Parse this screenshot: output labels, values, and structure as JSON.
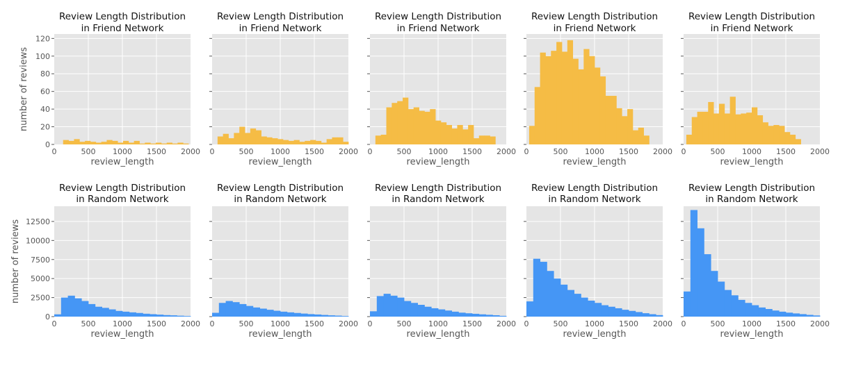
{
  "figure": {
    "rows": [
      {
        "title_line1": "Review Length Distribution",
        "title_line2": "in Friend Network",
        "ylabel": "number of reviews",
        "color": "#F5BC45"
      },
      {
        "title_line1": "Review Length Distribution",
        "title_line2": "in Random Network",
        "ylabel": "number of reviews",
        "color": "#4596F5"
      }
    ],
    "xlabel": "review_length",
    "background": "#E5E5E5",
    "grid_color": "#FFFFFF"
  },
  "chart_data": [
    {
      "type": "bar",
      "title": "Review Length Distribution in Friend Network",
      "xlabel": "review_length",
      "ylabel": "number of reviews",
      "xlim": [
        0,
        2000
      ],
      "ylim": [
        0,
        125
      ],
      "xticks": [
        0,
        500,
        1000,
        1500,
        2000
      ],
      "yticks": [
        0,
        20,
        40,
        60,
        80,
        100,
        120
      ],
      "bin_width": 80,
      "bin_starts": [
        50,
        130,
        210,
        290,
        370,
        450,
        530,
        610,
        690,
        770,
        850,
        930,
        1010,
        1090,
        1170,
        1250,
        1330,
        1410,
        1490,
        1570,
        1650,
        1730,
        1810,
        1890
      ],
      "values": [
        0,
        5,
        4,
        6,
        3,
        4,
        3,
        2,
        3,
        5,
        4,
        2,
        4,
        2,
        4,
        1,
        2,
        1,
        2,
        1,
        2,
        1,
        2,
        1
      ]
    },
    {
      "type": "bar",
      "title": "Review Length Distribution in Friend Network",
      "xlabel": "review_length",
      "xlim": [
        0,
        2000
      ],
      "ylim": [
        0,
        125
      ],
      "xticks": [
        0,
        500,
        1000,
        1500,
        2000
      ],
      "bin_width": 80,
      "bin_starts": [
        80,
        160,
        240,
        320,
        400,
        480,
        560,
        640,
        720,
        800,
        880,
        960,
        1040,
        1120,
        1200,
        1280,
        1360,
        1440,
        1520,
        1600,
        1680,
        1760,
        1840,
        1920
      ],
      "values": [
        9,
        12,
        7,
        13,
        20,
        13,
        18,
        16,
        9,
        8,
        7,
        6,
        5,
        4,
        5,
        3,
        4,
        5,
        4,
        2,
        6,
        8,
        8,
        3
      ]
    },
    {
      "type": "bar",
      "title": "Review Length Distribution in Friend Network",
      "xlabel": "review_length",
      "xlim": [
        0,
        2000
      ],
      "ylim": [
        0,
        125
      ],
      "xticks": [
        0,
        500,
        1000,
        1500,
        2000
      ],
      "bin_width": 80,
      "bin_starts": [
        80,
        160,
        240,
        320,
        400,
        480,
        560,
        640,
        720,
        800,
        880,
        960,
        1040,
        1120,
        1200,
        1280,
        1360,
        1440,
        1520,
        1600,
        1680,
        1760,
        1840,
        1920
      ],
      "values": [
        10,
        11,
        42,
        47,
        49,
        53,
        40,
        42,
        38,
        37,
        40,
        27,
        25,
        22,
        18,
        22,
        17,
        22,
        7,
        10,
        10,
        9,
        0,
        0
      ]
    },
    {
      "type": "bar",
      "title": "Review Length Distribution in Friend Network",
      "xlabel": "review_length",
      "xlim": [
        0,
        2000
      ],
      "ylim": [
        0,
        125
      ],
      "xticks": [
        0,
        500,
        1000,
        1500,
        2000
      ],
      "bin_width": 80,
      "bin_starts": [
        40,
        120,
        200,
        280,
        360,
        440,
        520,
        600,
        680,
        760,
        840,
        920,
        1000,
        1080,
        1160,
        1240,
        1320,
        1400,
        1480,
        1560,
        1640,
        1720,
        1800,
        1880
      ],
      "values": [
        21,
        65,
        104,
        100,
        106,
        116,
        105,
        118,
        97,
        85,
        108,
        100,
        87,
        77,
        55,
        55,
        41,
        32,
        40,
        16,
        19,
        10,
        0,
        0
      ]
    },
    {
      "type": "bar",
      "title": "Review Length Distribution in Friend Network",
      "xlabel": "review_length",
      "xlim": [
        0,
        2000
      ],
      "ylim": [
        0,
        125
      ],
      "xticks": [
        0,
        500,
        1000,
        1500,
        2000
      ],
      "bin_width": 80,
      "bin_starts": [
        40,
        120,
        200,
        280,
        360,
        440,
        520,
        600,
        680,
        760,
        840,
        920,
        1000,
        1080,
        1160,
        1240,
        1320,
        1400,
        1480,
        1560,
        1640,
        1720,
        1800,
        1880
      ],
      "values": [
        11,
        31,
        37,
        37,
        48,
        35,
        46,
        35,
        54,
        34,
        35,
        36,
        42,
        33,
        25,
        21,
        22,
        21,
        14,
        11,
        6,
        0,
        0,
        0
      ]
    },
    {
      "type": "bar",
      "title": "Review Length Distribution in Random Network",
      "xlabel": "review_length",
      "ylabel": "number of reviews",
      "xlim": [
        0,
        2000
      ],
      "ylim": [
        0,
        14500
      ],
      "xticks": [
        0,
        500,
        1000,
        1500,
        2000
      ],
      "yticks": [
        0,
        2500,
        5000,
        7500,
        10000,
        12500
      ],
      "bin_width": 100,
      "bin_starts": [
        0,
        100,
        200,
        300,
        400,
        500,
        600,
        700,
        800,
        900,
        1000,
        1100,
        1200,
        1300,
        1400,
        1500,
        1600,
        1700,
        1800,
        1900
      ],
      "values": [
        300,
        2500,
        2750,
        2400,
        2050,
        1650,
        1300,
        1150,
        950,
        750,
        650,
        560,
        480,
        380,
        320,
        260,
        200,
        170,
        120,
        80
      ]
    },
    {
      "type": "bar",
      "title": "Review Length Distribution in Random Network",
      "xlabel": "review_length",
      "xlim": [
        0,
        2000
      ],
      "ylim": [
        0,
        14500
      ],
      "xticks": [
        0,
        500,
        1000,
        1500,
        2000
      ],
      "bin_width": 100,
      "bin_starts": [
        0,
        100,
        200,
        300,
        400,
        500,
        600,
        700,
        800,
        900,
        1000,
        1100,
        1200,
        1300,
        1400,
        1500,
        1600,
        1700,
        1800,
        1900
      ],
      "values": [
        500,
        1800,
        2050,
        1900,
        1650,
        1400,
        1200,
        1050,
        900,
        770,
        650,
        560,
        480,
        400,
        330,
        280,
        220,
        170,
        130,
        80
      ]
    },
    {
      "type": "bar",
      "title": "Review Length Distribution in Random Network",
      "xlabel": "review_length",
      "xlim": [
        0,
        2000
      ],
      "ylim": [
        0,
        14500
      ],
      "xticks": [
        0,
        500,
        1000,
        1500,
        2000
      ],
      "bin_width": 100,
      "bin_starts": [
        0,
        100,
        200,
        300,
        400,
        500,
        600,
        700,
        800,
        900,
        1000,
        1100,
        1200,
        1300,
        1400,
        1500,
        1600,
        1700,
        1800,
        1900
      ],
      "values": [
        700,
        2700,
        3000,
        2750,
        2500,
        2050,
        1800,
        1550,
        1300,
        1100,
        950,
        800,
        650,
        520,
        440,
        370,
        300,
        240,
        180,
        100
      ]
    },
    {
      "type": "bar",
      "title": "Review Length Distribution in Random Network",
      "xlabel": "review_length",
      "xlim": [
        0,
        2000
      ],
      "ylim": [
        0,
        14500
      ],
      "xticks": [
        0,
        500,
        1000,
        1500,
        2000
      ],
      "bin_width": 100,
      "bin_starts": [
        0,
        100,
        200,
        300,
        400,
        500,
        600,
        700,
        800,
        900,
        1000,
        1100,
        1200,
        1300,
        1400,
        1500,
        1600,
        1700,
        1800,
        1900
      ],
      "values": [
        2000,
        7600,
        7200,
        6000,
        5000,
        4200,
        3500,
        3000,
        2500,
        2100,
        1800,
        1500,
        1300,
        1100,
        900,
        750,
        600,
        450,
        320,
        200
      ]
    },
    {
      "type": "bar",
      "title": "Review Length Distribution in Random Network",
      "xlabel": "review_length",
      "xlim": [
        0,
        2000
      ],
      "ylim": [
        0,
        14500
      ],
      "xticks": [
        0,
        500,
        1000,
        1500,
        2000
      ],
      "bin_width": 100,
      "bin_starts": [
        0,
        100,
        200,
        300,
        400,
        500,
        600,
        700,
        800,
        900,
        1000,
        1100,
        1200,
        1300,
        1400,
        1500,
        1600,
        1700,
        1800,
        1900
      ],
      "values": [
        3300,
        14000,
        11600,
        8200,
        6000,
        4600,
        3500,
        2800,
        2200,
        1800,
        1500,
        1200,
        1000,
        800,
        650,
        520,
        420,
        330,
        230,
        150
      ]
    }
  ]
}
